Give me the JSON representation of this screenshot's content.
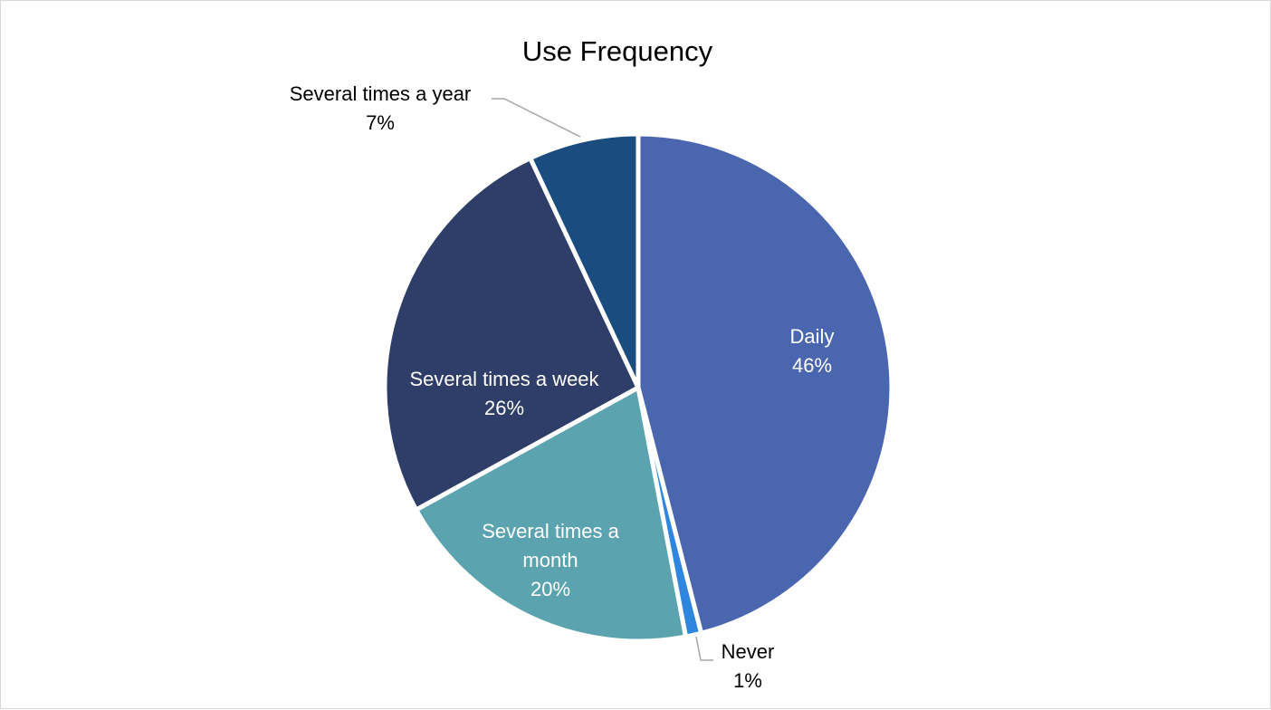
{
  "chart_data": {
    "type": "pie",
    "title": "Use Frequency",
    "slices": [
      {
        "label": "Daily",
        "label_lines": [
          "Daily"
        ],
        "value": 46,
        "display": "46%",
        "color": "#4a66ae",
        "label_pos": "inside"
      },
      {
        "label": "Never",
        "label_lines": [
          "Never"
        ],
        "value": 1,
        "display": "1%",
        "color": "#2e86de",
        "label_pos": "outside"
      },
      {
        "label": "Several times a month",
        "label_lines": [
          "Several times a",
          "month"
        ],
        "value": 20,
        "display": "20%",
        "color": "#5ba3ae",
        "label_pos": "inside"
      },
      {
        "label": "Several times a week",
        "label_lines": [
          "Several times a week"
        ],
        "value": 26,
        "display": "26%",
        "color": "#2e3e69",
        "label_pos": "inside"
      },
      {
        "label": "Several times a year",
        "label_lines": [
          "Several times a year"
        ],
        "value": 7,
        "display": "7%",
        "color": "#1b4c80",
        "label_pos": "outside"
      }
    ],
    "legend": "none"
  }
}
